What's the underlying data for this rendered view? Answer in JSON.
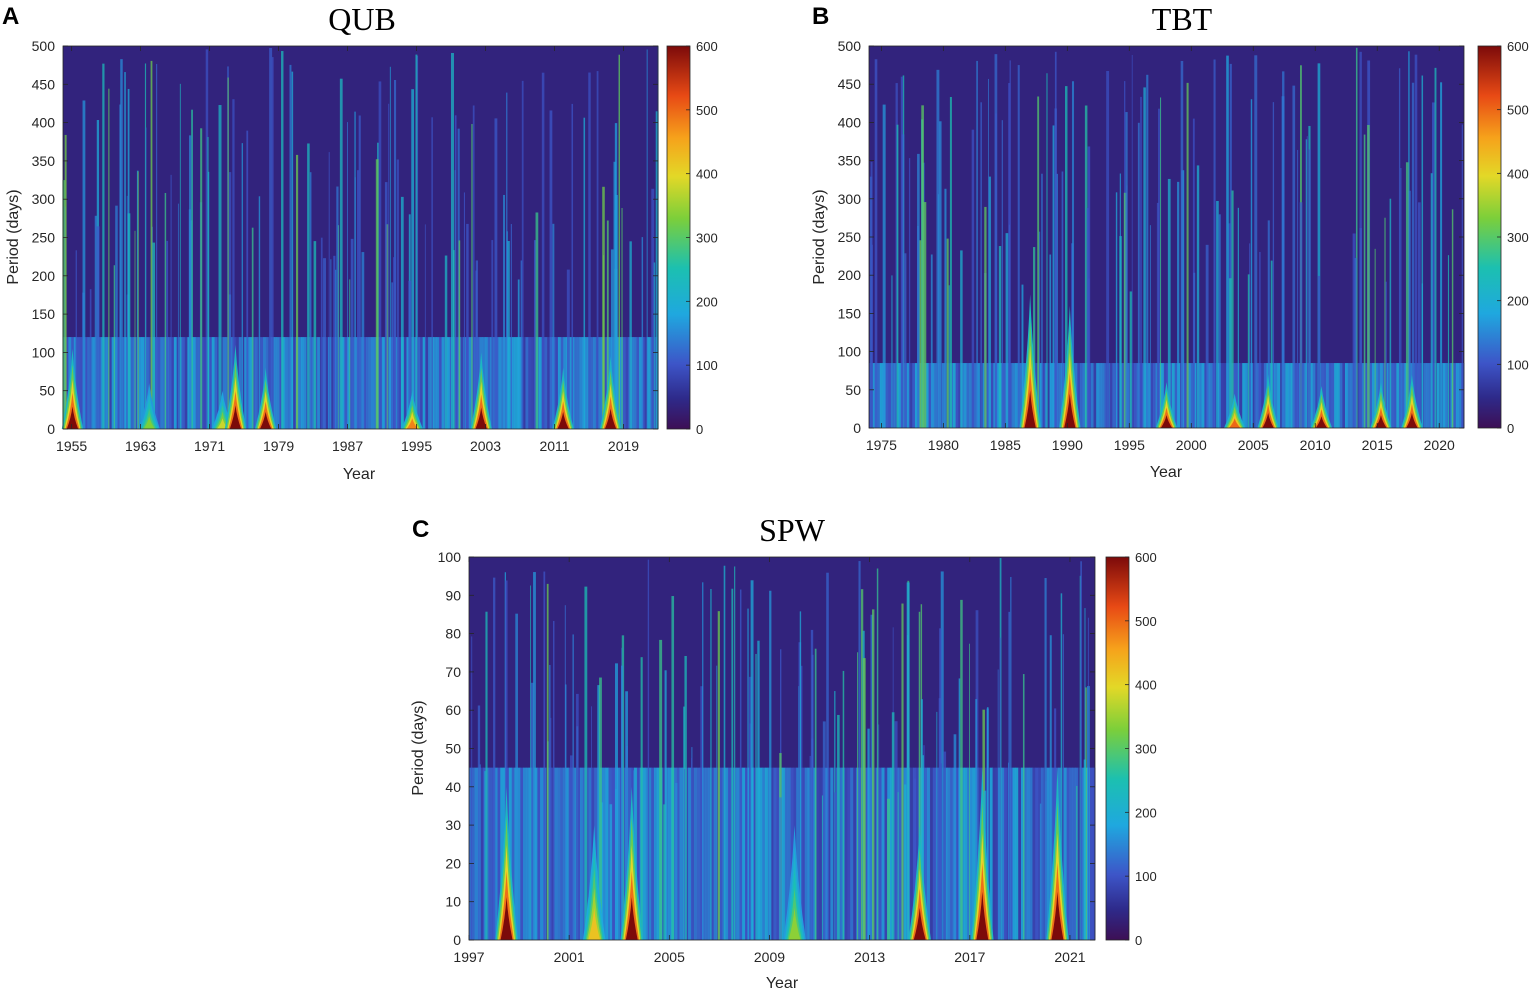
{
  "chart_data": [
    {
      "type": "heatmap",
      "panel_letter": "A",
      "title": "QUB",
      "xlabel": "Year",
      "ylabel": "Period (days)",
      "xlim": [
        1954,
        2023
      ],
      "ylim": [
        0,
        500
      ],
      "xticks": [
        1955,
        1963,
        1971,
        1979,
        1987,
        1995,
        2003,
        2011,
        2019
      ],
      "yticks": [
        0,
        50,
        100,
        150,
        200,
        250,
        300,
        350,
        400,
        450,
        500
      ],
      "colorbar": {
        "range": [
          0,
          600
        ],
        "ticks": [
          0,
          100,
          200,
          300,
          400,
          500,
          600
        ]
      },
      "band_top_period": 120,
      "peaks": [
        {
          "year": 1955.1,
          "period": 105,
          "value": 600
        },
        {
          "year": 1964.0,
          "period": 60,
          "value": 330
        },
        {
          "year": 1972.5,
          "period": 50,
          "value": 380
        },
        {
          "year": 1974.0,
          "period": 110,
          "value": 600
        },
        {
          "year": 1977.5,
          "period": 80,
          "value": 600
        },
        {
          "year": 1994.5,
          "period": 50,
          "value": 480
        },
        {
          "year": 2002.5,
          "period": 100,
          "value": 600
        },
        {
          "year": 2012.0,
          "period": 80,
          "value": 600
        },
        {
          "year": 2017.5,
          "period": 95,
          "value": 600
        }
      ]
    },
    {
      "type": "heatmap",
      "panel_letter": "B",
      "title": "TBT",
      "xlabel": "Year",
      "ylabel": "Period (days)",
      "xlim": [
        1974,
        2022
      ],
      "ylim": [
        0,
        500
      ],
      "xticks": [
        1975,
        1980,
        1985,
        1990,
        1995,
        2000,
        2005,
        2010,
        2015,
        2020
      ],
      "yticks": [
        0,
        50,
        100,
        150,
        200,
        250,
        300,
        350,
        400,
        450,
        500
      ],
      "colorbar": {
        "range": [
          0,
          600
        ],
        "ticks": [
          0,
          100,
          200,
          300,
          400,
          500,
          600
        ]
      },
      "band_top_period": 85,
      "peaks": [
        {
          "year": 1987.0,
          "period": 175,
          "value": 600
        },
        {
          "year": 1990.2,
          "period": 160,
          "value": 600
        },
        {
          "year": 1998.0,
          "period": 60,
          "value": 600
        },
        {
          "year": 2003.5,
          "period": 45,
          "value": 500
        },
        {
          "year": 2006.2,
          "period": 70,
          "value": 600
        },
        {
          "year": 2010.5,
          "period": 55,
          "value": 600
        },
        {
          "year": 2015.3,
          "period": 60,
          "value": 600
        },
        {
          "year": 2017.8,
          "period": 70,
          "value": 600
        }
      ]
    },
    {
      "type": "heatmap",
      "panel_letter": "C",
      "title": "SPW",
      "xlabel": "Year",
      "ylabel": "Period (days)",
      "xlim": [
        1997,
        2022
      ],
      "ylim": [
        0,
        100
      ],
      "xticks": [
        1997,
        2001,
        2005,
        2009,
        2013,
        2017,
        2021
      ],
      "yticks": [
        0,
        10,
        20,
        30,
        40,
        50,
        60,
        70,
        80,
        90,
        100
      ],
      "colorbar": {
        "range": [
          0,
          600
        ],
        "ticks": [
          0,
          100,
          200,
          300,
          400,
          500,
          600
        ]
      },
      "band_top_period": 45,
      "peaks": [
        {
          "year": 1998.5,
          "period": 40,
          "value": 600
        },
        {
          "year": 2002.0,
          "period": 30,
          "value": 420
        },
        {
          "year": 2003.5,
          "period": 40,
          "value": 600
        },
        {
          "year": 2010.0,
          "period": 30,
          "value": 340
        },
        {
          "year": 2015.0,
          "period": 30,
          "value": 600
        },
        {
          "year": 2017.5,
          "period": 45,
          "value": 600
        },
        {
          "year": 2020.5,
          "period": 45,
          "value": 600
        }
      ]
    }
  ]
}
